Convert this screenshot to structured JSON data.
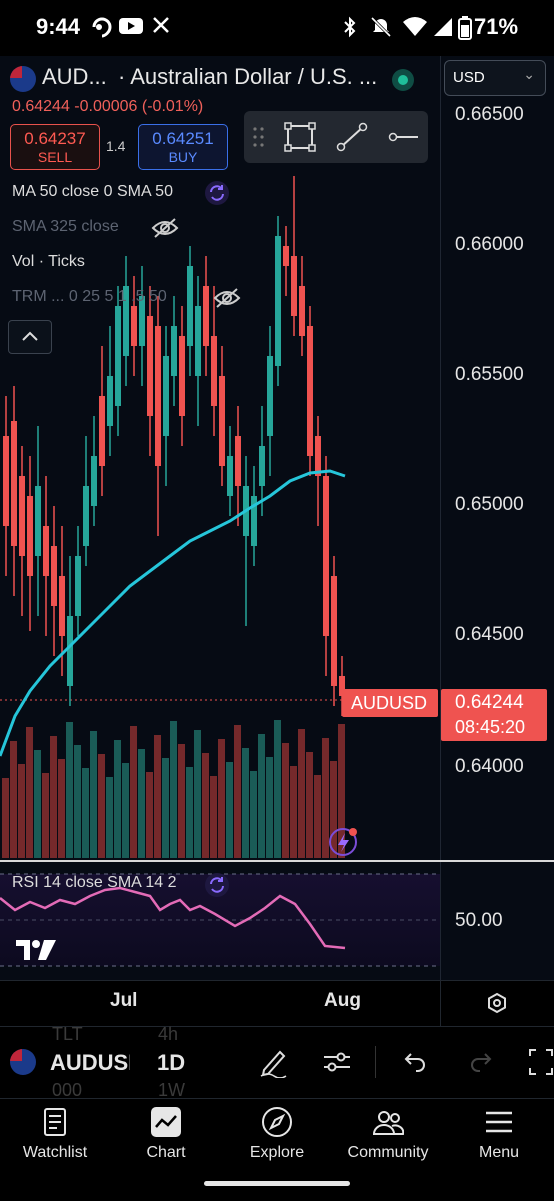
{
  "status": {
    "time": "9:44",
    "battery": "71%"
  },
  "header": {
    "symbol": "AUD...",
    "name": "· Australian Dollar / U.S. ...",
    "price_line": "0.64244  -0.00006 (-0.01%)",
    "currency": "USD"
  },
  "trade": {
    "sell_price": "0.64237",
    "sell_label": "SELL",
    "spread": "1.4",
    "buy_price": "0.64251",
    "buy_label": "BUY"
  },
  "indicators": {
    "ma": "MA 50 close 0 SMA 50",
    "sma": "SMA 325 close",
    "vol": "Vol · Ticks",
    "trm": "TRM ...  0 25 5 1 .5 50"
  },
  "price_axis": {
    "labels": [
      "0.66500",
      "0.66000",
      "0.65500",
      "0.65000",
      "0.64500",
      "0.64000"
    ],
    "symbol_tag": "AUDUSD",
    "current_price": "0.64244",
    "countdown": "08:45:20"
  },
  "rsi": {
    "label": "RSI 14 close SMA 14 2",
    "level": "50.00"
  },
  "time_axis": {
    "labels": [
      "Jul",
      "Aug"
    ]
  },
  "toolbar": {
    "symbol": "AUDUSD",
    "interval": "1D",
    "ghost_top_left": "TLT",
    "ghost_top_right": "4h",
    "ghost_bottom_left": "000",
    "ghost_bottom_right": "1W"
  },
  "nav": [
    {
      "label": "Watchlist",
      "icon": "watchlist-icon"
    },
    {
      "label": "Chart",
      "icon": "chart-icon"
    },
    {
      "label": "Explore",
      "icon": "compass-icon"
    },
    {
      "label": "Community",
      "icon": "community-icon"
    },
    {
      "label": "Menu",
      "icon": "menu-icon"
    }
  ],
  "colors": {
    "up": "#26a69a",
    "down": "#ef5350",
    "ma_line": "#26c6da",
    "rsi_line": "#e36bb7"
  }
}
